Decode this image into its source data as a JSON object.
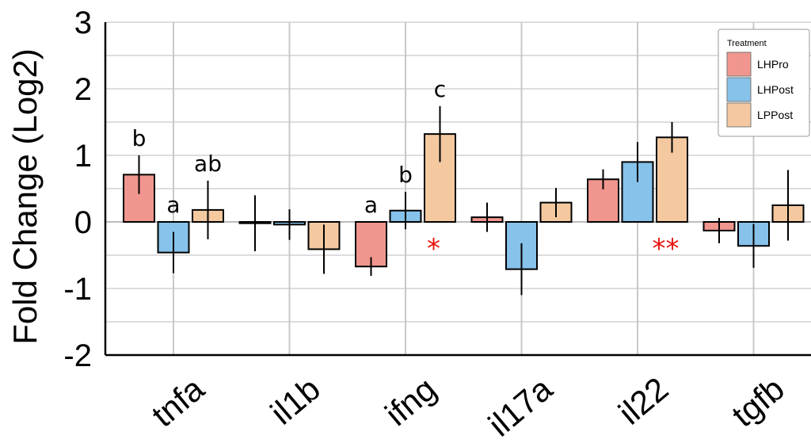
{
  "chart_data": {
    "type": "bar",
    "title": "",
    "xlabel": "",
    "ylabel": "Fold Change (Log2)",
    "ylim": [
      -2,
      3
    ],
    "yticks": [
      3,
      2,
      1,
      0,
      -1,
      -2
    ],
    "grid": true,
    "legend": {
      "title": "Treatment",
      "placement": "top-right"
    },
    "categories": [
      "tnfa",
      "il1b",
      "ifng",
      "il17a",
      "il22",
      "tgfb"
    ],
    "series": [
      {
        "name": "LHPro",
        "color": "#f0968e",
        "values": [
          0.71,
          -0.02,
          -0.67,
          0.07,
          0.64,
          -0.13
        ],
        "error": [
          0.29,
          0.42,
          0.14,
          0.22,
          0.15,
          0.19
        ]
      },
      {
        "name": "LHPost",
        "color": "#86c2ea",
        "values": [
          -0.46,
          -0.04,
          0.17,
          -0.71,
          0.9,
          -0.36
        ],
        "error": [
          0.31,
          0.23,
          0.28,
          0.39,
          0.3,
          0.33
        ]
      },
      {
        "name": "LPPost",
        "color": "#f4c9a0",
        "values": [
          0.18,
          -0.41,
          1.32,
          0.29,
          1.27,
          0.25
        ],
        "error": [
          0.44,
          0.37,
          0.42,
          0.22,
          0.23,
          0.53
        ]
      }
    ],
    "annotations": [
      {
        "text": "b",
        "category": 0,
        "series": 0
      },
      {
        "text": "a",
        "category": 0,
        "series": 1
      },
      {
        "text": "ab",
        "category": 0,
        "series": 2
      },
      {
        "text": "a",
        "category": 2,
        "series": 0
      },
      {
        "text": "b",
        "category": 2,
        "series": 1
      },
      {
        "text": "c",
        "category": 2,
        "series": 2
      }
    ],
    "stars": [
      {
        "text": "*",
        "category": 2,
        "series": 2
      },
      {
        "text": "**",
        "category": 4,
        "series": 2
      }
    ]
  }
}
